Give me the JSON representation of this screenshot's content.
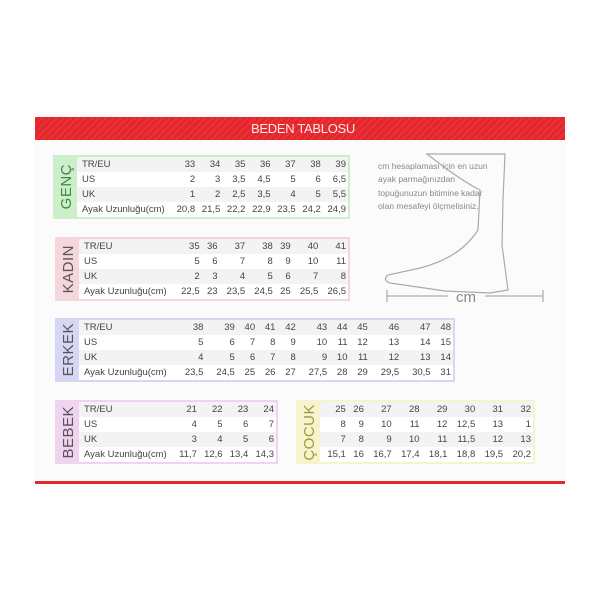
{
  "title": "BEDEN TABLOSU",
  "note": "cm hesaplaması için en uzun ayak parmağınızdan topuğunuzun bitimine kadar olan mesafeyi ölçmelisiniz.",
  "measure_label": "cm",
  "colors": {
    "accent": "#e4262c",
    "genc": "#cdeecb",
    "kadin": "#f5d6dc",
    "erkek": "#d7d6f4",
    "bebek": "#efd3ef",
    "cocuk": "#f7f3cf"
  },
  "tables": [
    {
      "id": "genc",
      "label": "GENÇ",
      "color": "#cdeecb",
      "text": "#3d8a40",
      "rows": [
        {
          "label": "TR/EU",
          "values": [
            "33",
            "34",
            "35",
            "36",
            "37",
            "38",
            "39"
          ]
        },
        {
          "label": "US",
          "values": [
            "2",
            "3",
            "3,5",
            "4,5",
            "5",
            "6",
            "6,5"
          ]
        },
        {
          "label": "UK",
          "values": [
            "1",
            "2",
            "2,5",
            "3,5",
            "4",
            "5",
            "5,5"
          ]
        },
        {
          "label": "Ayak Uzunluğu(cm)",
          "values": [
            "20,8",
            "21,5",
            "22,2",
            "22,9",
            "23,5",
            "24,2",
            "24,9"
          ]
        }
      ]
    },
    {
      "id": "kadin",
      "label": "KADIN",
      "color": "#f5d6dc",
      "text": "#555",
      "rows": [
        {
          "label": "TR/EU",
          "values": [
            "35",
            "36",
            "37",
            "38",
            "39",
            "40",
            "41"
          ]
        },
        {
          "label": "US",
          "values": [
            "5",
            "6",
            "7",
            "8",
            "9",
            "10",
            "11"
          ]
        },
        {
          "label": "UK",
          "values": [
            "2",
            "3",
            "4",
            "5",
            "6",
            "7",
            "8"
          ]
        },
        {
          "label": "Ayak Uzunluğu(cm)",
          "values": [
            "22,5",
            "23",
            "23,5",
            "24,5",
            "25",
            "25,5",
            "26,5"
          ]
        }
      ]
    },
    {
      "id": "erkek",
      "label": "ERKEK",
      "color": "#d7d6f4",
      "text": "#555",
      "rows": [
        {
          "label": "TR/EU",
          "values": [
            "38",
            "39",
            "40",
            "41",
            "42",
            "43",
            "44",
            "45",
            "46",
            "47",
            "48"
          ]
        },
        {
          "label": "US",
          "values": [
            "5",
            "6",
            "7",
            "8",
            "9",
            "10",
            "11",
            "12",
            "13",
            "14",
            "15"
          ]
        },
        {
          "label": "UK",
          "values": [
            "4",
            "5",
            "6",
            "7",
            "8",
            "9",
            "10",
            "11",
            "12",
            "13",
            "14"
          ]
        },
        {
          "label": "Ayak Uzunluğu(cm)",
          "values": [
            "23,5",
            "24,5",
            "25",
            "26",
            "27",
            "27,5",
            "28",
            "29",
            "29,5",
            "30,5",
            "31"
          ]
        }
      ]
    },
    {
      "id": "bebek",
      "label": "BEBEK",
      "color": "#efd3ef",
      "text": "#555",
      "rows": [
        {
          "label": "TR/EU",
          "values": [
            "21",
            "22",
            "23",
            "24"
          ]
        },
        {
          "label": "US",
          "values": [
            "4",
            "5",
            "6",
            "7"
          ]
        },
        {
          "label": "UK",
          "values": [
            "3",
            "4",
            "5",
            "6"
          ]
        },
        {
          "label": "Ayak Uzunluğu(cm)",
          "values": [
            "11,7",
            "12,6",
            "13,4",
            "14,3"
          ]
        }
      ]
    },
    {
      "id": "cocuk",
      "label": "ÇOCUK",
      "color": "#f7f3cf",
      "text": "#a09a3a",
      "rows": [
        {
          "label": "",
          "values": [
            "25",
            "26",
            "27",
            "28",
            "29",
            "30",
            "31",
            "32"
          ]
        },
        {
          "label": "",
          "values": [
            "8",
            "9",
            "10",
            "11",
            "12",
            "12,5",
            "13",
            "1"
          ]
        },
        {
          "label": "",
          "values": [
            "7",
            "8",
            "9",
            "10",
            "11",
            "11,5",
            "12",
            "13"
          ]
        },
        {
          "label": "",
          "values": [
            "15,1",
            "16",
            "16,7",
            "17,4",
            "18,1",
            "18,8",
            "19,5",
            "20,2"
          ]
        }
      ]
    }
  ]
}
